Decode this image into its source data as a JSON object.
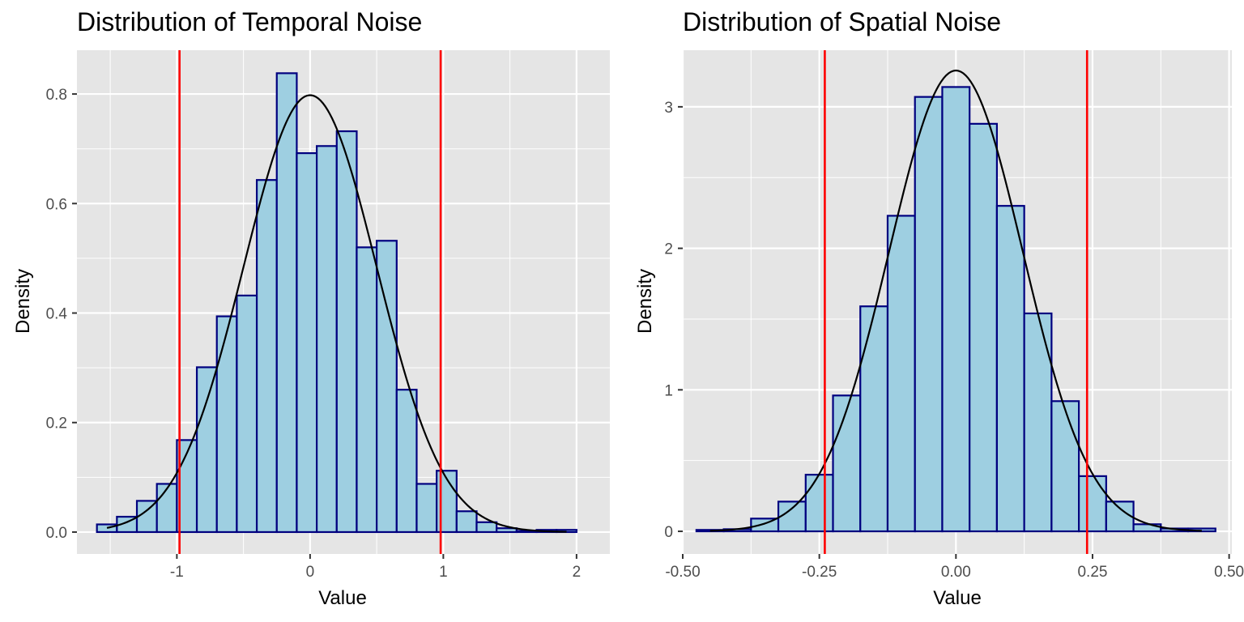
{
  "chart_data": [
    {
      "type": "bar",
      "title": "Distribution of Temporal Noise",
      "xlabel": "Value",
      "ylabel": "Density",
      "xlim": [
        -1.75,
        2.25
      ],
      "ylim": [
        -0.04,
        0.88
      ],
      "x_ticks": [
        -1,
        0,
        1,
        2
      ],
      "x_tick_labels": [
        "-1",
        "0",
        "1",
        "2"
      ],
      "y_ticks": [
        0.0,
        0.2,
        0.4,
        0.6,
        0.8
      ],
      "y_tick_labels": [
        "0.0",
        "0.2",
        "0.4",
        "0.6",
        "0.8"
      ],
      "grid": true,
      "bin_edges": [
        -1.6,
        -1.45,
        -1.3,
        -1.15,
        -1.0,
        -0.85,
        -0.7,
        -0.55,
        -0.4,
        -0.25,
        -0.1,
        0.05,
        0.2,
        0.35,
        0.5,
        0.65,
        0.8,
        0.95,
        1.1,
        1.25,
        1.4,
        1.55,
        1.7,
        1.85,
        2.0
      ],
      "values": [
        0.014,
        0.028,
        0.057,
        0.088,
        0.168,
        0.301,
        0.394,
        0.432,
        0.643,
        0.838,
        0.692,
        0.705,
        0.732,
        0.52,
        0.532,
        0.26,
        0.088,
        0.112,
        0.038,
        0.018,
        0.007,
        0.002,
        0.004,
        0.004
      ],
      "density_curve": {
        "mean": 0.0,
        "sd": 0.5
      },
      "vlines": [
        -0.98,
        0.98
      ],
      "colors": {
        "fill": "#9ecfe1",
        "outline": "#00007f",
        "curve": "#000000",
        "vline": "#ff0000",
        "panel": "#e5e5e5",
        "grid": "#ffffff"
      }
    },
    {
      "type": "bar",
      "title": "Distribution of Spatial Noise",
      "xlabel": "Value",
      "ylabel": "Density",
      "xlim": [
        -0.5,
        0.505
      ],
      "ylim": [
        -0.16,
        3.4
      ],
      "x_ticks": [
        -0.5,
        -0.25,
        0.0,
        0.25,
        0.5
      ],
      "x_tick_labels": [
        "-0.50",
        "-0.25",
        "0.00",
        "0.25",
        "0.50"
      ],
      "y_ticks": [
        0,
        1,
        2,
        3
      ],
      "y_tick_labels": [
        "0",
        "1",
        "2",
        "3"
      ],
      "grid": true,
      "bin_edges": [
        -0.475,
        -0.425,
        -0.375,
        -0.325,
        -0.275,
        -0.225,
        -0.175,
        -0.125,
        -0.075,
        -0.025,
        0.025,
        0.075,
        0.125,
        0.175,
        0.225,
        0.275,
        0.325,
        0.375,
        0.425,
        0.475
      ],
      "values": [
        0.01,
        0.015,
        0.09,
        0.21,
        0.4,
        0.96,
        1.59,
        2.23,
        3.07,
        3.14,
        2.88,
        2.3,
        1.54,
        0.92,
        0.39,
        0.21,
        0.05,
        0.02,
        0.02
      ],
      "density_curve": {
        "mean": 0.0,
        "sd": 0.1225
      },
      "vlines": [
        -0.24,
        0.24
      ],
      "colors": {
        "fill": "#9ecfe1",
        "outline": "#00007f",
        "curve": "#000000",
        "vline": "#ff0000",
        "panel": "#e5e5e5",
        "grid": "#ffffff"
      }
    }
  ]
}
